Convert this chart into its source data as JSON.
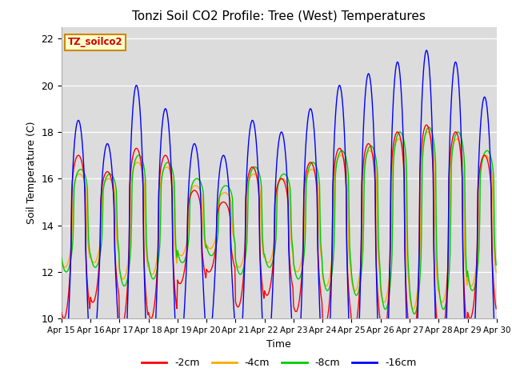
{
  "title": "Tonzi Soil CO2 Profile: Tree (West) Temperatures",
  "xlabel": "Time",
  "ylabel": "Soil Temperature (C)",
  "ylim": [
    10,
    22.5
  ],
  "yticks": [
    10,
    12,
    14,
    16,
    18,
    20,
    22
  ],
  "start_day": 15,
  "end_day": 30,
  "legend_label": "TZ_soilco2",
  "series_labels": [
    "-2cm",
    "-4cm",
    "-8cm",
    "-16cm"
  ],
  "series_colors": [
    "#ff0000",
    "#ffaa00",
    "#00cc00",
    "#0000ff"
  ],
  "background_color": "#dcdcdc",
  "figure_background": "#ffffff",
  "n_days": 15,
  "hours_per_day": 48,
  "base_2cm": 13.5,
  "base_4cm": 14.2,
  "base_8cm": 14.2,
  "base_16cm": 13.0,
  "amp_2cm": [
    3.5,
    2.8,
    3.8,
    3.5,
    2.0,
    1.5,
    3.0,
    2.5,
    3.2,
    3.8,
    4.0,
    4.5,
    4.8,
    4.5,
    3.5
  ],
  "amp_4cm": [
    2.0,
    1.8,
    2.5,
    2.3,
    1.5,
    1.2,
    2.0,
    1.8,
    2.2,
    2.8,
    3.0,
    3.5,
    3.8,
    3.5,
    2.8
  ],
  "amp_8cm": [
    2.2,
    2.0,
    2.8,
    2.5,
    1.8,
    1.5,
    2.3,
    2.0,
    2.5,
    3.0,
    3.2,
    3.8,
    4.0,
    3.8,
    3.0
  ],
  "amp_16cm": [
    5.5,
    4.5,
    7.0,
    6.0,
    4.5,
    4.0,
    5.5,
    5.0,
    6.0,
    7.0,
    7.5,
    8.0,
    8.5,
    8.0,
    6.5
  ],
  "peak_hour_2cm": 14,
  "peak_hour_4cm": 15,
  "peak_hour_8cm": 16,
  "peak_hour_16cm": 14,
  "sharpness": 3.5
}
